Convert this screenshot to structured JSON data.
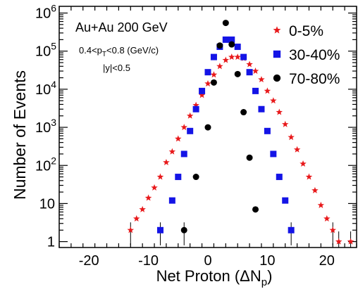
{
  "chart_data": {
    "type": "scatter",
    "xlabel_main": "Net Proton (ΔN",
    "xlabel_sub": "p",
    "xlabel_close": ")",
    "ylabel": "Number of Events",
    "xlim": [
      -25,
      25
    ],
    "ylim": [
      0.7,
      1500000
    ],
    "yscale": "log",
    "x_ticks": [
      -20,
      -10,
      0,
      10,
      20
    ],
    "y_ticks": [
      {
        "value": 1,
        "label": "1"
      },
      {
        "value": 10,
        "label": "10"
      },
      {
        "value": 100,
        "label": "10",
        "exp": "2"
      },
      {
        "value": 1000,
        "label": "10",
        "exp": "3"
      },
      {
        "value": 10000,
        "label": "10",
        "exp": "4"
      },
      {
        "value": 100000,
        "label": "10",
        "exp": "5"
      },
      {
        "value": 1000000,
        "label": "10",
        "exp": "6"
      }
    ],
    "annotations": {
      "system": "Au+Au 200 GeV",
      "pt_cut_a": "0.4<p",
      "pt_cut_sub": "T",
      "pt_cut_b": "<0.8 (GeV/c)",
      "y_cut": "|y|<0.5"
    },
    "legend_position": "top-right",
    "series": [
      {
        "name": "0-5%",
        "marker": "star",
        "color": "#e8191b",
        "points": [
          [
            -13,
            2
          ],
          [
            -12,
            4
          ],
          [
            -11,
            7
          ],
          [
            -10,
            14
          ],
          [
            -9,
            26
          ],
          [
            -8,
            50
          ],
          [
            -7,
            120
          ],
          [
            -6,
            230
          ],
          [
            -5,
            500
          ],
          [
            -4,
            1000
          ],
          [
            -3,
            2000
          ],
          [
            -2,
            3800
          ],
          [
            -1,
            7000
          ],
          [
            0,
            14000
          ],
          [
            1,
            24000
          ],
          [
            2,
            40000
          ],
          [
            3,
            58000
          ],
          [
            4,
            70000
          ],
          [
            5,
            70000
          ],
          [
            6,
            65000
          ],
          [
            7,
            45000
          ],
          [
            8,
            30000
          ],
          [
            9,
            18000
          ],
          [
            10,
            9000
          ],
          [
            11,
            5000
          ],
          [
            12,
            2500
          ],
          [
            13,
            1200
          ],
          [
            14,
            550
          ],
          [
            15,
            260
          ],
          [
            16,
            110
          ],
          [
            17,
            50
          ],
          [
            18,
            22
          ],
          [
            19,
            9
          ],
          [
            20,
            4
          ],
          [
            21,
            2
          ],
          [
            22,
            1
          ],
          [
            24,
            1
          ]
        ]
      },
      {
        "name": "30-40%",
        "marker": "square",
        "color": "#1414e6",
        "points": [
          [
            -8,
            2
          ],
          [
            -6,
            12
          ],
          [
            -5,
            50
          ],
          [
            -4,
            200
          ],
          [
            -3,
            800
          ],
          [
            -2,
            3000
          ],
          [
            -1,
            9000
          ],
          [
            0,
            28000
          ],
          [
            1,
            70000
          ],
          [
            2,
            130000
          ],
          [
            3,
            200000
          ],
          [
            4,
            200000
          ],
          [
            5,
            130000
          ],
          [
            6,
            70000
          ],
          [
            7,
            28000
          ],
          [
            8,
            9000
          ],
          [
            9,
            3000
          ],
          [
            10,
            800
          ],
          [
            11,
            200
          ],
          [
            12,
            50
          ],
          [
            13,
            12
          ],
          [
            14,
            2
          ]
        ]
      },
      {
        "name": "70-80%",
        "marker": "circle",
        "color": "#000000",
        "points": [
          [
            -4,
            2
          ],
          [
            -2,
            50
          ],
          [
            0,
            1000
          ],
          [
            1,
            15000
          ],
          [
            2,
            140000
          ],
          [
            3,
            550000
          ],
          [
            4,
            150000
          ],
          [
            5,
            25000
          ],
          [
            6,
            2500
          ],
          [
            7,
            160
          ],
          [
            8,
            7
          ]
        ]
      }
    ]
  }
}
